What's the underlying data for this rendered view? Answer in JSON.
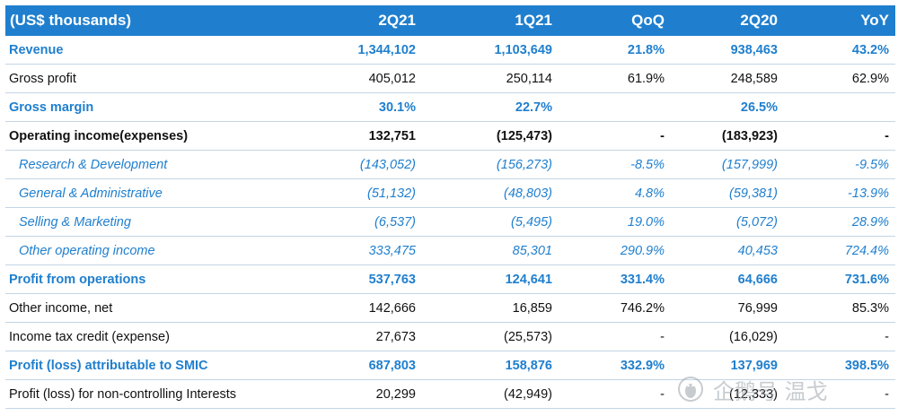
{
  "table": {
    "headers": [
      "(US$ thousands)",
      "2Q21",
      "1Q21",
      "QoQ",
      "2Q20",
      "YoY"
    ],
    "rows": [
      {
        "style": "blue",
        "cells": [
          "Revenue",
          "1,344,102",
          "1,103,649",
          "21.8%",
          "938,463",
          "43.2%"
        ]
      },
      {
        "style": "normal",
        "cells": [
          "Gross profit",
          "405,012",
          "250,114",
          "61.9%",
          "248,589",
          "62.9%"
        ]
      },
      {
        "style": "blue",
        "cells": [
          "Gross margin",
          "30.1%",
          "22.7%",
          "",
          "26.5%",
          ""
        ]
      },
      {
        "style": "bold",
        "cells": [
          "Operating income(expenses)",
          "132,751",
          "(125,473)",
          "-",
          "(183,923)",
          "-"
        ]
      },
      {
        "style": "ital",
        "cells": [
          "Research & Development",
          "(143,052)",
          "(156,273)",
          "-8.5%",
          "(157,999)",
          "-9.5%"
        ]
      },
      {
        "style": "ital",
        "cells": [
          "General & Administrative",
          "(51,132)",
          "(48,803)",
          "4.8%",
          "(59,381)",
          "-13.9%"
        ]
      },
      {
        "style": "ital",
        "cells": [
          "Selling & Marketing",
          "(6,537)",
          "(5,495)",
          "19.0%",
          "(5,072)",
          "28.9%"
        ]
      },
      {
        "style": "ital",
        "cells": [
          "Other operating income",
          "333,475",
          "85,301",
          "290.9%",
          "40,453",
          "724.4%"
        ]
      },
      {
        "style": "blue",
        "cells": [
          "Profit from operations",
          "537,763",
          "124,641",
          "331.4%",
          "64,666",
          "731.6%"
        ]
      },
      {
        "style": "normal",
        "cells": [
          "Other income, net",
          "142,666",
          "16,859",
          "746.2%",
          "76,999",
          "85.3%"
        ]
      },
      {
        "style": "normal",
        "cells": [
          "Income tax credit (expense)",
          "27,673",
          "(25,573)",
          "-",
          "(16,029)",
          "-"
        ]
      },
      {
        "style": "blue",
        "cells": [
          "Profit (loss) attributable to SMIC",
          "687,803",
          "158,876",
          "332.9%",
          "137,969",
          "398.5%"
        ]
      },
      {
        "style": "normal",
        "cells": [
          "Profit (loss) for non-controlling Interests",
          "20,299",
          "(42,949)",
          "-",
          "(12,333)",
          "-"
        ]
      }
    ]
  },
  "watermark": {
    "text": "企鹅号 温戈",
    "icon": "penguin-logo-icon"
  }
}
